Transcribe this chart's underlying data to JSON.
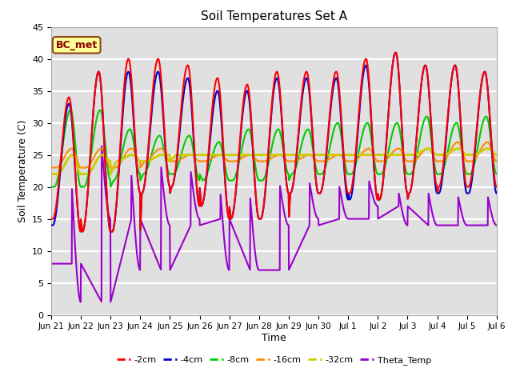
{
  "title": "Soil Temperatures Set A",
  "xlabel": "Time",
  "ylabel": "Soil Temperature (C)",
  "ylim": [
    0,
    45
  ],
  "background_color": "#e0e0e0",
  "grid_color": "white",
  "annotation_text": "BC_met",
  "annotation_bg": "#ffff99",
  "annotation_border": "#8B4513",
  "colors": {
    "m2cm": "#ff0000",
    "m4cm": "#0000cc",
    "m8cm": "#00cc00",
    "m16cm": "#ff8800",
    "m32cm": "#cccc00",
    "theta": "#9900cc"
  },
  "legend_labels": [
    "-2cm",
    "-4cm",
    "-8cm",
    "-16cm",
    "-32cm",
    "Theta_Temp"
  ],
  "tick_labels": [
    "Jun 21",
    "Jun 22",
    "Jun 23",
    "Jun 24",
    "Jun 25",
    "Jun 26",
    "Jun 27",
    "Jun 28",
    "Jun 29",
    "Jun 30",
    "Jul 1",
    "Jul 2",
    "Jul 3",
    "Jul 4",
    "Jul 5",
    "Jul 6"
  ],
  "tick_positions": [
    0,
    1,
    2,
    3,
    4,
    5,
    6,
    7,
    8,
    9,
    10,
    11,
    12,
    13,
    14,
    15
  ]
}
